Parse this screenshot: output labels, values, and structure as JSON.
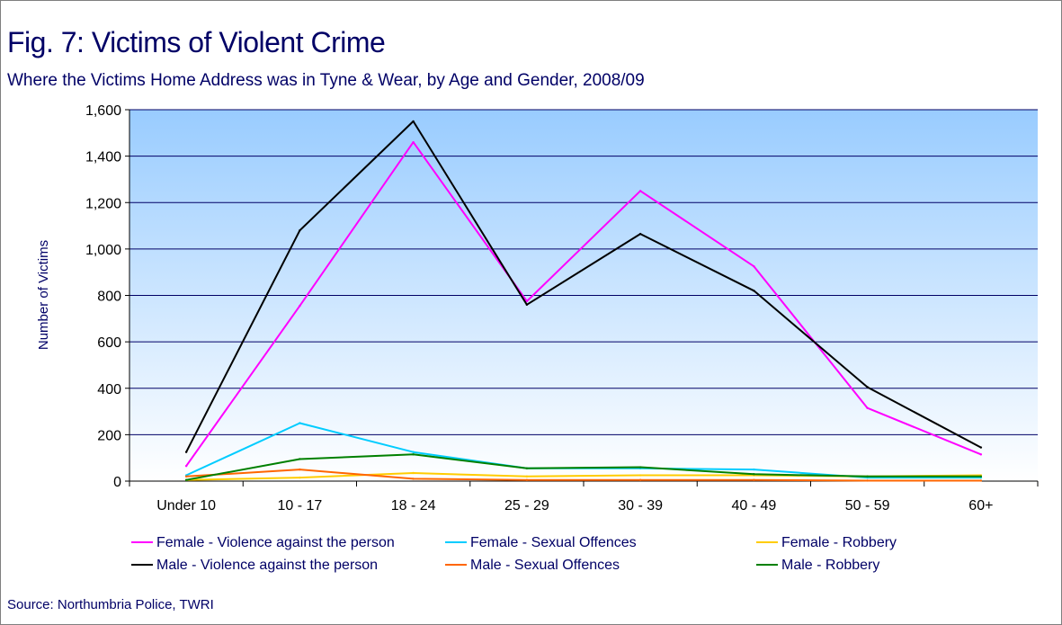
{
  "title": "Fig. 7: Victims of Violent Crime",
  "subtitle": "Where the Victims Home Address was in Tyne & Wear, by Age and Gender, 2008/09",
  "source": "Source: Northumbria Police, TWRI",
  "chart_data": {
    "type": "line",
    "title": "Fig. 7: Victims of Violent Crime",
    "subtitle": "Where the Victims Home Address was in Tyne & Wear, by Age and Gender, 2008/09",
    "xlabel": "",
    "ylabel": "Number of Victims",
    "ylim": [
      0,
      1600
    ],
    "yticks": [
      0,
      200,
      400,
      600,
      800,
      1000,
      1200,
      1400,
      1600
    ],
    "ytick_labels": [
      "0",
      "200",
      "400",
      "600",
      "800",
      "1,000",
      "1,200",
      "1,400",
      "1,600"
    ],
    "grid": true,
    "legend_position": "bottom",
    "categories": [
      "Under 10",
      "10 - 17",
      "18 - 24",
      "25 - 29",
      "30 - 39",
      "40 - 49",
      "50 - 59",
      "60+"
    ],
    "series": [
      {
        "name": "Female - Violence against the person",
        "color": "#ff00ff",
        "values": [
          65,
          755,
          1460,
          775,
          1250,
          925,
          315,
          115
        ]
      },
      {
        "name": "Female - Sexual Offences",
        "color": "#00ccff",
        "values": [
          25,
          250,
          125,
          55,
          55,
          50,
          15,
          15
        ]
      },
      {
        "name": "Female - Robbery",
        "color": "#ffcc00",
        "values": [
          5,
          15,
          35,
          20,
          25,
          25,
          20,
          25
        ]
      },
      {
        "name": "Male - Violence against the person",
        "color": "#000000",
        "values": [
          125,
          1080,
          1550,
          760,
          1065,
          820,
          405,
          145
        ]
      },
      {
        "name": "Male - Sexual Offences",
        "color": "#ff6600",
        "values": [
          20,
          50,
          10,
          5,
          5,
          5,
          2,
          2
        ]
      },
      {
        "name": "Male - Robbery",
        "color": "#008000",
        "values": [
          5,
          95,
          115,
          55,
          60,
          30,
          20,
          20
        ]
      }
    ]
  }
}
